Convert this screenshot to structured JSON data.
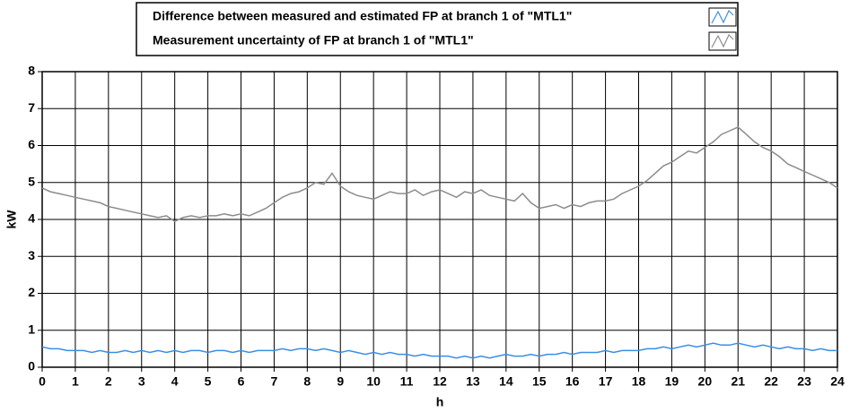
{
  "chart_data": {
    "type": "line",
    "x_label": "h",
    "y_label": "kW",
    "xlim": [
      0,
      24
    ],
    "ylim": [
      0,
      8
    ],
    "xticks": [
      0,
      1,
      2,
      3,
      4,
      5,
      6,
      7,
      8,
      9,
      10,
      11,
      12,
      13,
      14,
      15,
      16,
      17,
      18,
      19,
      20,
      21,
      22,
      23,
      24
    ],
    "yticks": [
      0,
      1,
      2,
      3,
      4,
      5,
      6,
      7,
      8
    ],
    "grid": true,
    "legend": "top",
    "x": [
      0,
      0.25,
      0.5,
      0.75,
      1,
      1.25,
      1.5,
      1.75,
      2,
      2.25,
      2.5,
      2.75,
      3,
      3.25,
      3.5,
      3.75,
      4,
      4.25,
      4.5,
      4.75,
      5,
      5.25,
      5.5,
      5.75,
      6,
      6.25,
      6.5,
      6.75,
      7,
      7.25,
      7.5,
      7.75,
      8,
      8.25,
      8.5,
      8.75,
      9,
      9.25,
      9.5,
      9.75,
      10,
      10.25,
      10.5,
      10.75,
      11,
      11.25,
      11.5,
      11.75,
      12,
      12.25,
      12.5,
      12.75,
      13,
      13.25,
      13.5,
      13.75,
      14,
      14.25,
      14.5,
      14.75,
      15,
      15.25,
      15.5,
      15.75,
      16,
      16.25,
      16.5,
      16.75,
      17,
      17.25,
      17.5,
      17.75,
      18,
      18.25,
      18.5,
      18.75,
      19,
      19.25,
      19.5,
      19.75,
      20,
      20.25,
      20.5,
      20.75,
      21,
      21.25,
      21.5,
      21.75,
      22,
      22.25,
      22.5,
      22.75,
      23,
      23.25,
      23.5,
      23.75,
      24
    ],
    "series": [
      {
        "name": "Difference between measured and estimated FP at branch 1 of \"MTL1\"",
        "color": "#3a8ee6",
        "values": [
          0.55,
          0.5,
          0.5,
          0.45,
          0.45,
          0.45,
          0.4,
          0.45,
          0.4,
          0.4,
          0.45,
          0.4,
          0.45,
          0.4,
          0.45,
          0.4,
          0.45,
          0.4,
          0.45,
          0.45,
          0.4,
          0.45,
          0.45,
          0.4,
          0.45,
          0.4,
          0.45,
          0.45,
          0.45,
          0.5,
          0.45,
          0.5,
          0.5,
          0.45,
          0.5,
          0.45,
          0.4,
          0.45,
          0.4,
          0.35,
          0.4,
          0.35,
          0.4,
          0.35,
          0.35,
          0.3,
          0.35,
          0.3,
          0.3,
          0.3,
          0.25,
          0.3,
          0.25,
          0.3,
          0.25,
          0.3,
          0.35,
          0.3,
          0.3,
          0.35,
          0.3,
          0.35,
          0.35,
          0.4,
          0.35,
          0.4,
          0.4,
          0.4,
          0.45,
          0.4,
          0.45,
          0.45,
          0.45,
          0.5,
          0.5,
          0.55,
          0.5,
          0.55,
          0.6,
          0.55,
          0.6,
          0.65,
          0.6,
          0.6,
          0.65,
          0.6,
          0.55,
          0.6,
          0.55,
          0.5,
          0.55,
          0.5,
          0.5,
          0.45,
          0.5,
          0.45,
          0.45
        ]
      },
      {
        "name": "Measurement uncertainty of FP at branch 1 of \"MTL1\"",
        "color": "#8c8c8c",
        "values": [
          4.85,
          4.75,
          4.7,
          4.65,
          4.6,
          4.55,
          4.5,
          4.45,
          4.35,
          4.3,
          4.25,
          4.2,
          4.15,
          4.1,
          4.05,
          4.1,
          3.95,
          4.05,
          4.1,
          4.05,
          4.1,
          4.1,
          4.15,
          4.1,
          4.15,
          4.1,
          4.2,
          4.3,
          4.45,
          4.6,
          4.7,
          4.75,
          4.85,
          5.0,
          4.95,
          5.25,
          4.9,
          4.75,
          4.65,
          4.6,
          4.55,
          4.65,
          4.75,
          4.7,
          4.7,
          4.8,
          4.65,
          4.75,
          4.8,
          4.7,
          4.6,
          4.75,
          4.7,
          4.8,
          4.65,
          4.6,
          4.55,
          4.5,
          4.7,
          4.45,
          4.3,
          4.35,
          4.4,
          4.3,
          4.4,
          4.35,
          4.45,
          4.5,
          4.5,
          4.55,
          4.7,
          4.8,
          4.9,
          5.05,
          5.25,
          5.45,
          5.55,
          5.7,
          5.85,
          5.8,
          5.95,
          6.1,
          6.3,
          6.4,
          6.5,
          6.3,
          6.1,
          5.95,
          5.85,
          5.7,
          5.5,
          5.4,
          5.3,
          5.2,
          5.1,
          5.0,
          4.85
        ]
      }
    ]
  }
}
